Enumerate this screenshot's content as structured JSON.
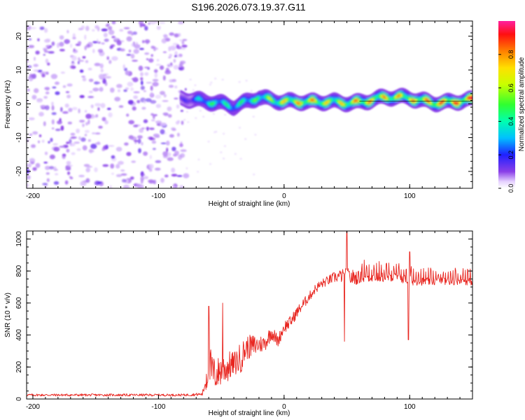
{
  "title": "S196.2026.073.19.37.G11",
  "colors": {
    "snr_line": "#e8251f",
    "axis": "#000000",
    "spectrogram_noise": "#7a2be0"
  },
  "chart_data": [
    {
      "type": "heatmap",
      "name": "spectrogram",
      "title": "S196.2026.073.19.37.G11",
      "xlabel": "Height of straight line (km)",
      "ylabel": "Frequency (Hz)",
      "xlim": [
        -205,
        150
      ],
      "ylim": [
        -25,
        24.5
      ],
      "xticks": [
        -200,
        -100,
        0,
        100
      ],
      "xtick_labels": [
        "-200",
        "-100",
        "0",
        "100"
      ],
      "yticks": [
        -20,
        -10,
        0,
        10,
        20
      ],
      "ytick_labels": [
        "-20",
        "-10",
        "0",
        "10",
        "20"
      ],
      "noise_extent_km": [
        -205,
        -78
      ],
      "signal_band": {
        "description": "narrow band around 0 Hz",
        "x": [
          -80,
          -60,
          -40,
          -20,
          0,
          20,
          40,
          60,
          80,
          100,
          120,
          150
        ],
        "center_hz": [
          2.0,
          0.2,
          -1.0,
          2.5,
          0.6,
          0.0,
          0.8,
          0.8,
          1.5,
          1.5,
          0.8,
          0.8
        ],
        "peak_amplitude": [
          0.15,
          0.5,
          0.45,
          0.55,
          0.75,
          0.85,
          0.7,
          0.85,
          0.8,
          0.8,
          0.9,
          0.95
        ]
      }
    },
    {
      "type": "colorbar",
      "name": "amplitude-colorbar",
      "label": "Normalized spectral amplitude",
      "range": [
        0.0,
        1.0
      ],
      "ticks": [
        0.0,
        0.2,
        0.4,
        0.6,
        0.8
      ],
      "tick_labels": [
        "0.0",
        "0.2",
        "0.4",
        "0.6",
        "0.8"
      ]
    },
    {
      "type": "line",
      "name": "snr",
      "xlabel": "Height of straight line (km)",
      "ylabel": "SNR (10 * v/v)",
      "xlim": [
        -205,
        150
      ],
      "ylim": [
        0,
        1050
      ],
      "xticks": [
        -200,
        -100,
        0,
        100
      ],
      "xtick_labels": [
        "-200",
        "-100",
        "0",
        "100"
      ],
      "yticks": [
        0,
        200,
        400,
        600,
        800,
        1000
      ],
      "ytick_labels": [
        "0",
        "200",
        "400",
        "600",
        "800",
        "1000"
      ],
      "x": [
        -205,
        -80,
        -65,
        -60,
        -55,
        -50,
        -45,
        -40,
        -35,
        -30,
        -25,
        -20,
        -15,
        -10,
        -5,
        0,
        5,
        10,
        15,
        20,
        25,
        30,
        35,
        40,
        45,
        50,
        55,
        60,
        65,
        70,
        80,
        90,
        100,
        110,
        120,
        130,
        140,
        150
      ],
      "mean": [
        25,
        25,
        30,
        200,
        150,
        180,
        200,
        220,
        250,
        320,
        330,
        340,
        350,
        420,
        360,
        450,
        480,
        540,
        590,
        640,
        690,
        720,
        740,
        760,
        770,
        760,
        760,
        760,
        760,
        760,
        760,
        760,
        740,
        735,
        735,
        735,
        740,
        735
      ],
      "spread": [
        15,
        15,
        20,
        300,
        200,
        200,
        200,
        150,
        200,
        150,
        150,
        120,
        100,
        100,
        80,
        80,
        80,
        70,
        70,
        60,
        60,
        60,
        60,
        70,
        80,
        120,
        100,
        80,
        70,
        60,
        60,
        55,
        60,
        50,
        50,
        50,
        50,
        50
      ],
      "spikes": [
        {
          "x": -60,
          "y": 580
        },
        {
          "x": -49,
          "y": 600
        },
        {
          "x": 50,
          "y": 1050
        },
        {
          "x": 48,
          "y": 360
        },
        {
          "x": 100,
          "y": 920
        },
        {
          "x": 99,
          "y": 370
        }
      ]
    }
  ]
}
